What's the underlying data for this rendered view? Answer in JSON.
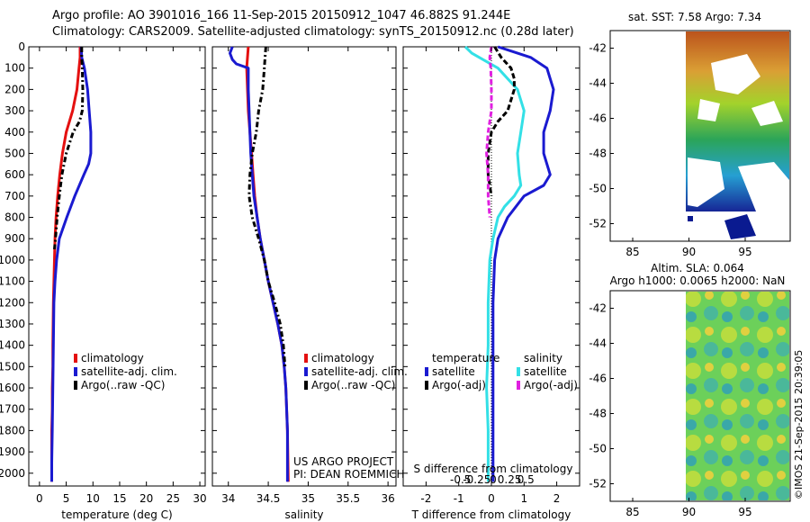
{
  "header": {
    "line1": "Argo profile: AO 3901016_166 11-Sep-2015 20150912_1047 46.882S 91.244E",
    "line2": "Climatology: CARS2009. Satellite-adjusted climatology: synTS_20150912.nc (0.28d later)"
  },
  "depth_ticks": [
    "0",
    "100",
    "200",
    "300",
    "400",
    "500",
    "600",
    "700",
    "800",
    "900",
    "1000",
    "1100",
    "1200",
    "1300",
    "1400",
    "1500",
    "1600",
    "1700",
    "1800",
    "1900",
    "2000"
  ],
  "depth_values": [
    0,
    100,
    200,
    300,
    400,
    500,
    600,
    700,
    800,
    900,
    1000,
    1100,
    1200,
    1300,
    1400,
    1500,
    1600,
    1700,
    1800,
    1900,
    2000
  ],
  "colors": {
    "clim": "#e41010",
    "sat": "#1a1ad0",
    "argo": "#000000",
    "sat_s": "#33e0e6",
    "argo_s": "#e020e0"
  },
  "chart_data": [
    {
      "type": "line",
      "title": "",
      "xlabel": "temperature (deg C)",
      "ylabel": "depth",
      "xlim": [
        -2,
        31
      ],
      "ylim": [
        2060,
        0
      ],
      "x_ticks": [
        "0",
        "5",
        "10",
        "15",
        "20",
        "25",
        "30"
      ],
      "x_tick_values": [
        0,
        5,
        10,
        15,
        20,
        25,
        30
      ],
      "series": [
        {
          "name": "climatology",
          "style": "solid",
          "color": "#e41010",
          "x": [
            7.6,
            7.6,
            7.4,
            7.0,
            6.2,
            5.0,
            4.3,
            3.8,
            3.4,
            3.1,
            2.9,
            2.8,
            2.6,
            2.5,
            2.5,
            2.4,
            2.4,
            2.3,
            2.3,
            2.3
          ],
          "y": [
            0,
            50,
            100,
            200,
            300,
            400,
            500,
            600,
            700,
            800,
            900,
            1000,
            1200,
            1400,
            1500,
            1600,
            1700,
            1800,
            1900,
            2040
          ]
        },
        {
          "name": "satellite-adj. clim.",
          "style": "solid",
          "color": "#1a1ad0",
          "x": [
            7.8,
            7.9,
            8.4,
            9.0,
            9.3,
            9.6,
            9.6,
            9.2,
            8.3,
            6.6,
            5.1,
            3.7,
            3.2,
            2.9,
            2.7,
            2.6,
            2.5,
            2.4,
            2.3,
            2.3
          ],
          "y": [
            0,
            50,
            100,
            200,
            300,
            400,
            500,
            550,
            600,
            700,
            800,
            900,
            1000,
            1100,
            1200,
            1400,
            1600,
            1800,
            1950,
            2040
          ]
        },
        {
          "name": "Argo(..raw -QC)",
          "style": "dashdot",
          "color": "#000000",
          "x": [
            7.9,
            7.9,
            8.0,
            8.1,
            8.0,
            7.5,
            6.3,
            5.0,
            4.2,
            3.7,
            3.3,
            3.0,
            2.8
          ],
          "y": [
            0,
            50,
            100,
            200,
            300,
            350,
            400,
            500,
            600,
            700,
            800,
            900,
            950
          ]
        }
      ],
      "legend": {
        "position": "center",
        "entries": [
          "climatology",
          "satellite-adj. clim.",
          "Argo(..raw -QC)"
        ]
      }
    },
    {
      "type": "line",
      "xlabel": "salinity",
      "xlim": [
        33.8,
        36.1
      ],
      "ylim": [
        2060,
        0
      ],
      "x_ticks": [
        "34",
        "34.5",
        "35",
        "35.5",
        "36"
      ],
      "x_tick_values": [
        34,
        34.5,
        35,
        35.5,
        36
      ],
      "series": [
        {
          "name": "climatology",
          "style": "solid",
          "color": "#e41010",
          "x": [
            34.25,
            34.24,
            34.23,
            34.24,
            34.25,
            34.27,
            34.29,
            34.31,
            34.33,
            34.36,
            34.4,
            34.45,
            34.5,
            34.56,
            34.62,
            34.67,
            34.7,
            34.72,
            34.74,
            34.75
          ],
          "y": [
            0,
            50,
            100,
            200,
            300,
            400,
            500,
            600,
            700,
            800,
            900,
            1000,
            1100,
            1200,
            1300,
            1400,
            1500,
            1600,
            1800,
            2040
          ]
        },
        {
          "name": "satellite-adj. clim.",
          "style": "solid",
          "color": "#1a1ad0",
          "x": [
            34.05,
            34.02,
            34.05,
            34.1,
            34.25,
            34.25,
            34.26,
            34.27,
            34.28,
            34.3,
            34.32,
            34.36,
            34.4,
            34.45,
            34.5,
            34.56,
            34.62,
            34.67,
            34.7,
            34.72,
            34.74,
            34.74
          ],
          "y": [
            0,
            30,
            60,
            80,
            100,
            200,
            300,
            400,
            500,
            600,
            700,
            800,
            900,
            1000,
            1100,
            1200,
            1300,
            1400,
            1500,
            1600,
            1800,
            2040
          ]
        },
        {
          "name": "Argo(..raw -QC)",
          "style": "dashdot",
          "color": "#000000",
          "x": [
            34.47,
            34.46,
            34.45,
            34.43,
            34.38,
            34.35,
            34.3,
            34.27,
            34.26,
            34.3,
            34.38,
            34.45,
            34.5,
            34.58,
            34.65,
            34.69,
            34.7,
            34.71
          ],
          "y": [
            0,
            50,
            100,
            200,
            300,
            400,
            500,
            600,
            700,
            800,
            900,
            1000,
            1100,
            1200,
            1300,
            1400,
            1450,
            1500
          ]
        }
      ],
      "legend": {
        "position": "center",
        "entries": [
          "climatology",
          "satellite-adj. clim.",
          "Argo(..raw -QC)"
        ]
      }
    },
    {
      "type": "line",
      "xlabel": "T difference from climatology",
      "x2label": "S difference from climatology",
      "xlim": [
        -2.7,
        2.7
      ],
      "ylim": [
        2060,
        0
      ],
      "x_ticks": [
        "-2",
        "-1",
        "0",
        "1",
        "2"
      ],
      "x_tick_values": [
        -2,
        -1,
        0,
        1,
        2
      ],
      "x2_ticks": [
        "-0.5",
        "-0.25",
        "0",
        "0.25",
        "0.5"
      ],
      "x2_tick_values": [
        -0.5,
        -0.25,
        0,
        0.25,
        0.5
      ],
      "series": [
        {
          "name": "temperature satellite",
          "style": "solid",
          "color": "#1a1ad0",
          "x": [
            0.2,
            0.6,
            1.2,
            1.7,
            1.9,
            1.8,
            1.6,
            1.6,
            1.7,
            1.8,
            1.6,
            1.0,
            0.5,
            0.2,
            0.1,
            0.05,
            0.05,
            0.05,
            0.05
          ],
          "y": [
            0,
            20,
            50,
            100,
            200,
            300,
            400,
            500,
            550,
            600,
            650,
            700,
            800,
            900,
            1000,
            1200,
            1500,
            1800,
            2040
          ]
        },
        {
          "name": "salinity satellite",
          "style": "solid",
          "color": "#33e0e6",
          "x": [
            -0.8,
            -0.6,
            0.2,
            0.8,
            1.0,
            0.9,
            0.8,
            0.85,
            0.9,
            0.7,
            0.4,
            0.2,
            0.05,
            -0.05,
            -0.1,
            -0.1,
            -0.15,
            -0.1,
            -0.1
          ],
          "y": [
            0,
            30,
            100,
            200,
            300,
            400,
            500,
            600,
            650,
            700,
            750,
            800,
            900,
            1000,
            1200,
            1400,
            1600,
            1800,
            2040
          ]
        },
        {
          "name": "temperature Argo(-adj)",
          "style": "dashed",
          "color": "#000000",
          "x": [
            0.1,
            0.3,
            0.6,
            0.7,
            0.7,
            0.5,
            0.2,
            0.0,
            -0.1,
            -0.1,
            0.0
          ],
          "y": [
            0,
            50,
            100,
            150,
            200,
            300,
            350,
            400,
            500,
            600,
            700
          ]
        },
        {
          "name": "salinity Argo(-adj)",
          "style": "dashed",
          "color": "#e020e0",
          "x": [
            0.0,
            -0.05,
            -0.02,
            0.0,
            0.0,
            -0.1,
            -0.15,
            -0.1,
            -0.1,
            -0.05
          ],
          "y": [
            0,
            50,
            100,
            200,
            300,
            400,
            500,
            600,
            700,
            800
          ]
        }
      ],
      "legend": {
        "position": "center",
        "headers": [
          "temperature",
          "salinity"
        ],
        "entries": [
          "satellite",
          "Argo(-adj)",
          "satellite",
          "Argo(-adj)"
        ]
      }
    },
    {
      "type": "heatmap",
      "title": "sat. SST: 7.58 Argo: 7.34",
      "xlim": [
        83,
        99
      ],
      "ylim": [
        -53,
        -41
      ],
      "x_ticks": [
        "85",
        "90",
        "95"
      ],
      "x_tick_values": [
        85,
        90,
        95
      ],
      "y_ticks": [
        "-42",
        "-44",
        "-46",
        "-48",
        "-50",
        "-52"
      ],
      "y_tick_values": [
        -42,
        -44,
        -46,
        -48,
        -50,
        -52
      ]
    },
    {
      "type": "heatmap",
      "title": "Altim. SLA: 0.064",
      "subtitle": "Argo h1000: 0.0065 h2000: NaN",
      "xlim": [
        83,
        99
      ],
      "ylim": [
        -53,
        -41
      ],
      "x_ticks": [
        "85",
        "90",
        "95"
      ],
      "x_tick_values": [
        85,
        90,
        95
      ],
      "y_ticks": [
        "-42",
        "-44",
        "-46",
        "-48",
        "-50",
        "-52"
      ],
      "y_tick_values": [
        -42,
        -44,
        -46,
        -48,
        -50,
        -52
      ]
    }
  ],
  "texts": {
    "project1": "US ARGO PROJECT",
    "project2": "PI: DEAN ROEMMICH",
    "stamp": "©IMOS 21-Sep-2015 20:39:05"
  }
}
